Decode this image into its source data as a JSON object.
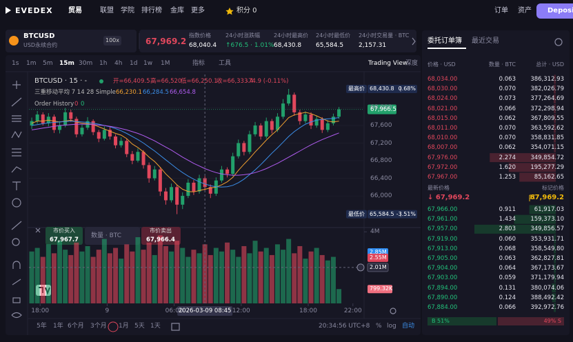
{
  "header": {
    "logo": "EVEDEX",
    "nav": [
      "贸易",
      "联盟",
      "学院",
      "排行榜",
      "金库",
      "更多"
    ],
    "points": "积分 0",
    "orders": "订单",
    "assets": "资产",
    "deposit": "Deposit"
  },
  "ticker": {
    "symbol": "BTCUSD",
    "contract": "USD永续合约",
    "leverage": "100x",
    "last_price": "67,969.2",
    "stats": [
      {
        "label": "指数价格",
        "value": "68,040.4"
      },
      {
        "label": "24小时涨跌幅",
        "value": "↑676.5 · 1.01%"
      },
      {
        "label": "24小时最高价",
        "value": "68,430.8"
      },
      {
        "label": "24小时最低价",
        "value": "65,584.5"
      },
      {
        "label": "24小时交易量 · BTC",
        "value": "2,157.31"
      }
    ]
  },
  "toolbar": {
    "intervals": [
      "1s",
      "1m",
      "5m",
      "15m",
      "30m",
      "1h",
      "4h",
      "1d",
      "1w",
      "1M"
    ],
    "active_interval": 3,
    "indicators": "指标",
    "tools": "工具",
    "trading_view": "Trading View",
    "depth": "深度"
  },
  "legend": {
    "symbol": "BTCUSD · 15 · -",
    "ohlc": [
      "开=66,409.5",
      "高=66,520",
      "低=66,250.1",
      "收=66,333.4",
      "-74.9 (-0.11%)"
    ],
    "ma_title": "三重移动平均 7 14 28 Simple",
    "ma_values": [
      "66,230.1",
      "66,284.5",
      "66,654.8"
    ],
    "order_history": "Order History",
    "order_counts": [
      "0",
      "0"
    ]
  },
  "trade_panel": {
    "buy": "市价买入",
    "buy_price": "67,967.7",
    "quantity": "数量 · BTC",
    "sell": "市价卖出",
    "sell_price": "67,966.4"
  },
  "chart_data": {
    "type": "candlestick",
    "x": [
      -6.75,
      -6.25,
      -5.75,
      -5.25,
      -4.75,
      -4.25,
      -3.75,
      -3.25,
      -2.75,
      -2.25,
      -1.75,
      -1.25,
      -0.75,
      -0.25,
      0.25,
      0.75,
      1.25,
      1.75,
      2.25,
      2.75,
      3.25,
      3.75,
      4.25,
      4.75,
      5.25,
      5.75,
      6.25,
      6.75,
      7.25,
      7.75,
      8.25,
      8.75,
      9.25,
      9.75,
      10.25,
      10.75,
      11.25,
      11.75,
      12.25,
      12.75,
      13.25,
      13.75,
      14.25,
      14.75,
      15.25,
      15.75,
      16.25,
      16.75,
      17.25,
      17.75,
      18.25,
      18.75,
      19.25,
      19.75,
      20.25,
      20.75
    ],
    "open": [
      67600,
      67700,
      67850,
      67650,
      67800,
      67500,
      67600,
      67900,
      67750,
      67400,
      67550,
      67700,
      67450,
      67300,
      67500,
      67350,
      67150,
      67250,
      66950,
      66800,
      67000,
      66700,
      66400,
      66600,
      66100,
      65900,
      66200,
      65800,
      66000,
      66300,
      66100,
      66400,
      66200,
      66050,
      66350,
      66600,
      66500,
      66900,
      67200,
      67000,
      67400,
      67600,
      67350,
      67700,
      67500,
      67800,
      68100,
      68300,
      67900,
      67700,
      67850,
      67600,
      67750,
      67500,
      67650,
      67800
    ],
    "high": [
      67780,
      67930,
      67900,
      67880,
      67850,
      67700,
      68000,
      67960,
      67800,
      67620,
      67790,
      67740,
      67500,
      67580,
      67560,
      67400,
      67330,
      67300,
      67020,
      67080,
      67040,
      66760,
      66680,
      66650,
      66180,
      66280,
      66250,
      66080,
      66380,
      66360,
      66480,
      66450,
      66260,
      66420,
      66680,
      66650,
      66980,
      67280,
      67250,
      67480,
      67680,
      67650,
      67780,
      67750,
      67880,
      68200,
      68430.8,
      68350,
      67960,
      67920,
      67900,
      67820,
      67790,
      67720,
      67870,
      68020
    ],
    "low": [
      67520,
      67640,
      67600,
      67580,
      67430,
      67420,
      67560,
      67680,
      67330,
      67350,
      67500,
      67380,
      67220,
      67260,
      67280,
      67080,
      67100,
      66880,
      66720,
      66760,
      66620,
      66300,
      66350,
      66000,
      65800,
      65850,
      65584.5,
      65700,
      65950,
      66020,
      66050,
      66120,
      65950,
      66000,
      66300,
      66420,
      66450,
      66850,
      66920,
      66950,
      67350,
      67280,
      67300,
      67420,
      67450,
      67750,
      68050,
      67820,
      67620,
      67650,
      67520,
      67550,
      67430,
      67450,
      67600,
      67750
    ],
    "close": [
      67700,
      67850,
      67650,
      67800,
      67500,
      67600,
      67900,
      67750,
      67400,
      67550,
      67700,
      67450,
      67300,
      67500,
      67350,
      67150,
      67250,
      66950,
      66800,
      67000,
      66700,
      66400,
      66600,
      66100,
      65900,
      66200,
      65800,
      66000,
      66300,
      66100,
      66400,
      66200,
      66050,
      66350,
      66600,
      66500,
      66900,
      67200,
      67000,
      67400,
      67600,
      67350,
      67700,
      67500,
      67800,
      68100,
      68300,
      67900,
      67700,
      67850,
      67600,
      67750,
      67500,
      67650,
      67800,
      67966.5
    ],
    "up_color": "#22a06b",
    "down_color": "#e0475c",
    "ylim": [
      65280,
      68760
    ],
    "yticks": [
      {
        "value": 66000,
        "label": "66,000"
      },
      {
        "value": 66400,
        "label": "66,400"
      },
      {
        "value": 66800,
        "label": "66,800"
      },
      {
        "value": 67200,
        "label": "67,200"
      },
      {
        "value": 67600,
        "label": "67,600"
      },
      {
        "value": 68000,
        "label": "68,000"
      }
    ],
    "xlim": [
      -7,
      23
    ],
    "xticks": [
      {
        "value": -6,
        "label": "18:00"
      },
      {
        "value": 0,
        "label": "9"
      },
      {
        "value": 6,
        "label": "06:00"
      },
      {
        "value": 12,
        "label": "12:00"
      },
      {
        "value": 18,
        "label": "18:00"
      },
      {
        "value": 22,
        "label": "22:00"
      }
    ],
    "moving_averages": [
      {
        "color": "#f0a030",
        "values": [
          67650,
          67700,
          67700,
          67720,
          67700,
          67680,
          67700,
          67720,
          67680,
          67650,
          67640,
          67620,
          67570,
          67520,
          67470,
          67420,
          67380,
          67300,
          67180,
          67100,
          67000,
          66880,
          66780,
          66650,
          66500,
          66380,
          66250,
          66150,
          66100,
          66090,
          66120,
          66150,
          66180,
          66200,
          66250,
          66320,
          66420,
          66580,
          66720,
          66850,
          67000,
          67130,
          67270,
          67390,
          67500,
          67640,
          67780,
          67840,
          67870,
          67900,
          67870,
          67820,
          67760,
          67700,
          67680,
          67700
        ]
      },
      {
        "color": "#3b8ee8",
        "values": [
          67600,
          67620,
          67640,
          67660,
          67670,
          67680,
          67690,
          67700,
          67690,
          67680,
          67670,
          67650,
          67630,
          67600,
          67570,
          67530,
          67480,
          67420,
          67350,
          67280,
          67200,
          67110,
          67020,
          66920,
          66820,
          66720,
          66620,
          66530,
          66450,
          66380,
          66320,
          66270,
          66230,
          66210,
          66200,
          66210,
          66240,
          66300,
          66380,
          66480,
          66590,
          66710,
          66840,
          66970,
          67090,
          67220,
          67350,
          67460,
          67550,
          67630,
          67680,
          67720,
          67740,
          67750,
          67760,
          67780
        ]
      },
      {
        "color": "#b05cf0",
        "values": [
          67500,
          67520,
          67540,
          67560,
          67580,
          67600,
          67610,
          67620,
          67630,
          67630,
          67630,
          67620,
          67610,
          67600,
          67580,
          67560,
          67530,
          67500,
          67460,
          67420,
          67370,
          67310,
          67250,
          67180,
          67110,
          67040,
          66960,
          66880,
          66810,
          66740,
          66680,
          66620,
          66570,
          66530,
          66500,
          66480,
          66470,
          66470,
          66480,
          66500,
          66530,
          66570,
          66620,
          66680,
          66740,
          66810,
          66880,
          66950,
          67020,
          67090,
          67160,
          67220,
          67280,
          67330,
          67380,
          67430
        ]
      }
    ],
    "price_markers": [
      {
        "label": "最高价",
        "value": 68430.8,
        "value_label": "68,430.8",
        "change": "0.68%"
      },
      {
        "label": "最低价",
        "value": 65584.5,
        "value_label": "65,584.5",
        "change": "-3.51%"
      }
    ],
    "current_price": {
      "value": 67966.5,
      "label": "67,966.5"
    },
    "crosshair": {
      "x": 8.75,
      "label": "2026-03-09 08:45"
    },
    "volume": {
      "values": [
        2.9,
        3.1,
        2.6,
        3.3,
        2.8,
        3.5,
        3.0,
        2.7,
        3.4,
        2.9,
        3.2,
        2.6,
        3.0,
        3.6,
        2.8,
        3.1,
        2.5,
        3.3,
        2.9,
        3.7,
        3.0,
        3.4,
        2.7,
        3.8,
        3.2,
        2.9,
        3.5,
        3.1,
        2.6,
        3.0,
        2.8,
        3.3,
        2.7,
        3.1,
        2.9,
        3.4,
        3.0,
        2.6,
        3.2,
        2.8,
        3.5,
        2.9,
        3.1,
        2.7,
        3.3,
        3.0,
        3.6,
        2.8,
        3.2,
        2.5,
        2.9,
        3.1,
        2.7,
        2.4,
        2.6,
        0.79932
      ],
      "ylim": [
        0,
        4.2
      ],
      "yticks": [
        {
          "value": 4,
          "label": "4M"
        }
      ],
      "markers": [
        {
          "value": 2.85,
          "label": "2.85M",
          "color": "#2f8cf0"
        },
        {
          "value": 2.55,
          "label": "2.55M",
          "color": "#e0475c"
        },
        {
          "value": 2.01,
          "label": "2.01M",
          "color": "#2a2a3c"
        },
        {
          "value": 0.79932,
          "label": "799.32K",
          "color": "#f07080"
        }
      ]
    }
  },
  "bottom_bar": {
    "ranges": [
      "5年",
      "1年",
      "6个月",
      "3个月",
      "1月",
      "5天",
      "1天"
    ],
    "time": "20:34:56 UTC+8",
    "percent": "%",
    "log": "log",
    "auto": "自动"
  },
  "order_book": {
    "tabs": [
      "委托订单簿",
      "最近交易"
    ],
    "columns": [
      "价格 · USD",
      "数量 · BTC",
      "总计 · USD"
    ],
    "asks": [
      [
        "68,034.00",
        "0.063",
        "386,312.93"
      ],
      [
        "68,030.00",
        "0.070",
        "382,026.79"
      ],
      [
        "68,024.00",
        "0.073",
        "377,264.69"
      ],
      [
        "68,021.00",
        "0.066",
        "372,298.94"
      ],
      [
        "68,015.00",
        "0.062",
        "367,809.55"
      ],
      [
        "68,011.00",
        "0.070",
        "363,592.62"
      ],
      [
        "68,010.00",
        "0.070",
        "358,831.85"
      ],
      [
        "68,007.00",
        "0.062",
        "354,071.15"
      ],
      [
        "67,976.00",
        "2.274",
        "349,854.72"
      ],
      [
        "67,972.00",
        "1.620",
        "195,277.29"
      ],
      [
        "67,967.00",
        "1.253",
        "85,162.65"
      ]
    ],
    "last_price_label": "最新价格",
    "mark_price_label": "标记价格",
    "last_price": "↓ 67,969.2",
    "mark_price": "67,969.2",
    "bids": [
      [
        "67,966.00",
        "0.911",
        "61,917.03"
      ],
      [
        "67,961.00",
        "1.434",
        "159,373.10"
      ],
      [
        "67,957.00",
        "2.803",
        "349,856.57"
      ],
      [
        "67,919.00",
        "0.060",
        "353,931.71"
      ],
      [
        "67,913.00",
        "0.068",
        "358,549.80"
      ],
      [
        "67,905.00",
        "0.063",
        "362,827.81"
      ],
      [
        "67,904.00",
        "0.064",
        "367,173.67"
      ],
      [
        "67,903.00",
        "0.059",
        "371,179.94"
      ],
      [
        "67,894.00",
        "0.131",
        "380,074.06"
      ],
      [
        "67,890.00",
        "0.124",
        "388,492.42"
      ],
      [
        "67,884.00",
        "0.066",
        "392,972.76"
      ]
    ],
    "buy_ratio": "B 51%",
    "sell_ratio": "49% S"
  }
}
